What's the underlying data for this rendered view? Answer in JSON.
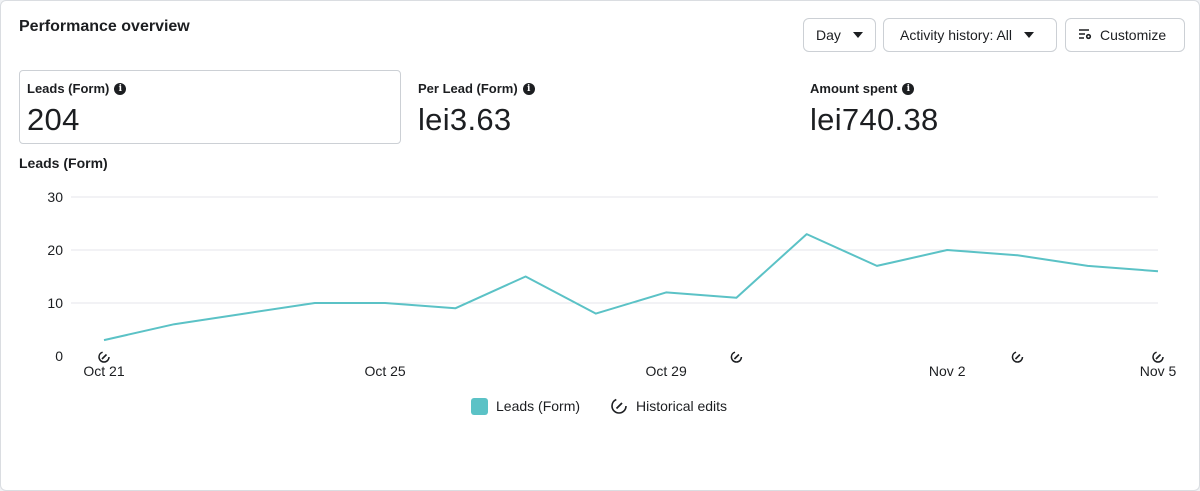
{
  "header": {
    "title": "Performance overview",
    "period_label": "Day",
    "activity_label": "Activity history: All",
    "customize_label": "Customize"
  },
  "metrics": [
    {
      "label": "Leads (Form)",
      "value": "204"
    },
    {
      "label": "Per Lead (Form)",
      "value": "lei3.63"
    },
    {
      "label": "Amount spent",
      "value": "lei740.38"
    }
  ],
  "chart_title": "Leads (Form)",
  "legend": {
    "series_label": "Leads (Form)",
    "edits_label": "Historical edits"
  },
  "colors": {
    "series": "#5bc2c6",
    "grid": "#e4e6eb"
  },
  "chart_data": {
    "type": "line",
    "x": [
      "Oct 21",
      "Oct 22",
      "Oct 23",
      "Oct 24",
      "Oct 25",
      "Oct 26",
      "Oct 27",
      "Oct 28",
      "Oct 29",
      "Oct 30",
      "Oct 31",
      "Nov 1",
      "Nov 2",
      "Nov 3",
      "Nov 4",
      "Nov 5"
    ],
    "x_tick_labels": [
      "Oct 21",
      "Oct 25",
      "Oct 29",
      "Nov 2",
      "Nov 5"
    ],
    "y_ticks": [
      "0",
      "10",
      "20",
      "30"
    ],
    "ylim": [
      0,
      30
    ],
    "grid": true,
    "legend_position": "bottom",
    "series": [
      {
        "name": "Leads (Form)",
        "values": [
          3,
          6,
          8,
          10,
          10,
          9,
          15,
          8,
          12,
          11,
          23,
          17,
          20,
          19,
          17,
          16
        ]
      }
    ],
    "historical_edits_at": [
      "Oct 21",
      "Oct 30",
      "Nov 3",
      "Nov 5"
    ]
  }
}
